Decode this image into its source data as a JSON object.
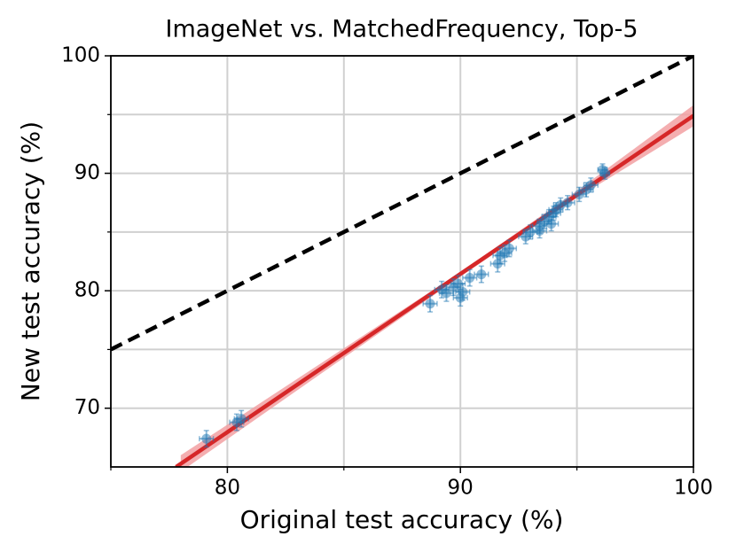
{
  "chart_data": {
    "type": "scatter",
    "title": "ImageNet vs. MatchedFrequency, Top-5",
    "x_label": "Original test accuracy (%)",
    "y_label": "New test accuracy (%)",
    "xlim": [
      75,
      100
    ],
    "ylim": [
      65,
      100
    ],
    "xticks": [
      80,
      90,
      100
    ],
    "yticks": [
      70,
      80,
      90,
      100
    ],
    "x_minor": [
      75,
      85,
      95
    ],
    "y_minor": [
      75,
      85,
      95
    ],
    "grid": true,
    "series": [
      {
        "color": "#1f77b4",
        "x": [
          79.1,
          80.4,
          80.6,
          88.7,
          89.2,
          89.4,
          89.7,
          89.9,
          90.0,
          90.1,
          90.4,
          90.9,
          91.6,
          91.7,
          91.9,
          92.1,
          92.8,
          93.0,
          93.4,
          93.6,
          93.8,
          94.0,
          94.1,
          94.3,
          94.6,
          95.1,
          95.4,
          95.6,
          96.1,
          96.2,
          93.4,
          93.9
        ],
        "values": [
          67.4,
          68.8,
          69.1,
          78.9,
          80.1,
          79.8,
          80.3,
          80.6,
          79.4,
          79.9,
          81.1,
          81.4,
          82.3,
          83.0,
          83.2,
          83.6,
          84.6,
          85.0,
          85.5,
          85.9,
          86.3,
          86.6,
          86.9,
          87.3,
          87.5,
          88.2,
          88.6,
          89.0,
          90.3,
          90.0,
          85.1,
          85.7
        ],
        "x_err": [
          0.3,
          0.3,
          0.3,
          0.3,
          0.3,
          0.3,
          0.3,
          0.3,
          0.3,
          0.3,
          0.3,
          0.3,
          0.3,
          0.3,
          0.3,
          0.3,
          0.3,
          0.3,
          0.3,
          0.3,
          0.3,
          0.3,
          0.3,
          0.3,
          0.3,
          0.3,
          0.3,
          0.3,
          0.2,
          0.2,
          0.3,
          0.3
        ],
        "y_err": [
          0.7,
          0.7,
          0.7,
          0.7,
          0.7,
          0.7,
          0.7,
          0.7,
          0.7,
          0.7,
          0.7,
          0.7,
          0.7,
          0.7,
          0.7,
          0.7,
          0.6,
          0.6,
          0.6,
          0.6,
          0.6,
          0.6,
          0.6,
          0.6,
          0.6,
          0.6,
          0.6,
          0.6,
          0.5,
          0.5,
          0.6,
          0.6
        ]
      }
    ],
    "reference_line": {
      "color": "#000000",
      "x": [
        75,
        100
      ],
      "values": [
        75,
        100
      ]
    },
    "fit_line": {
      "color": "#d62728",
      "x": [
        77.8,
        100
      ],
      "values": [
        65,
        94.9
      ]
    },
    "fit_band": {
      "color": "#f2a0a2",
      "x": [
        78,
        85,
        90,
        95,
        100
      ],
      "lower": [
        64.6,
        74.3,
        81.2,
        87.9,
        94.0
      ],
      "upper": [
        66.0,
        75.1,
        81.6,
        88.5,
        95.8
      ]
    }
  }
}
